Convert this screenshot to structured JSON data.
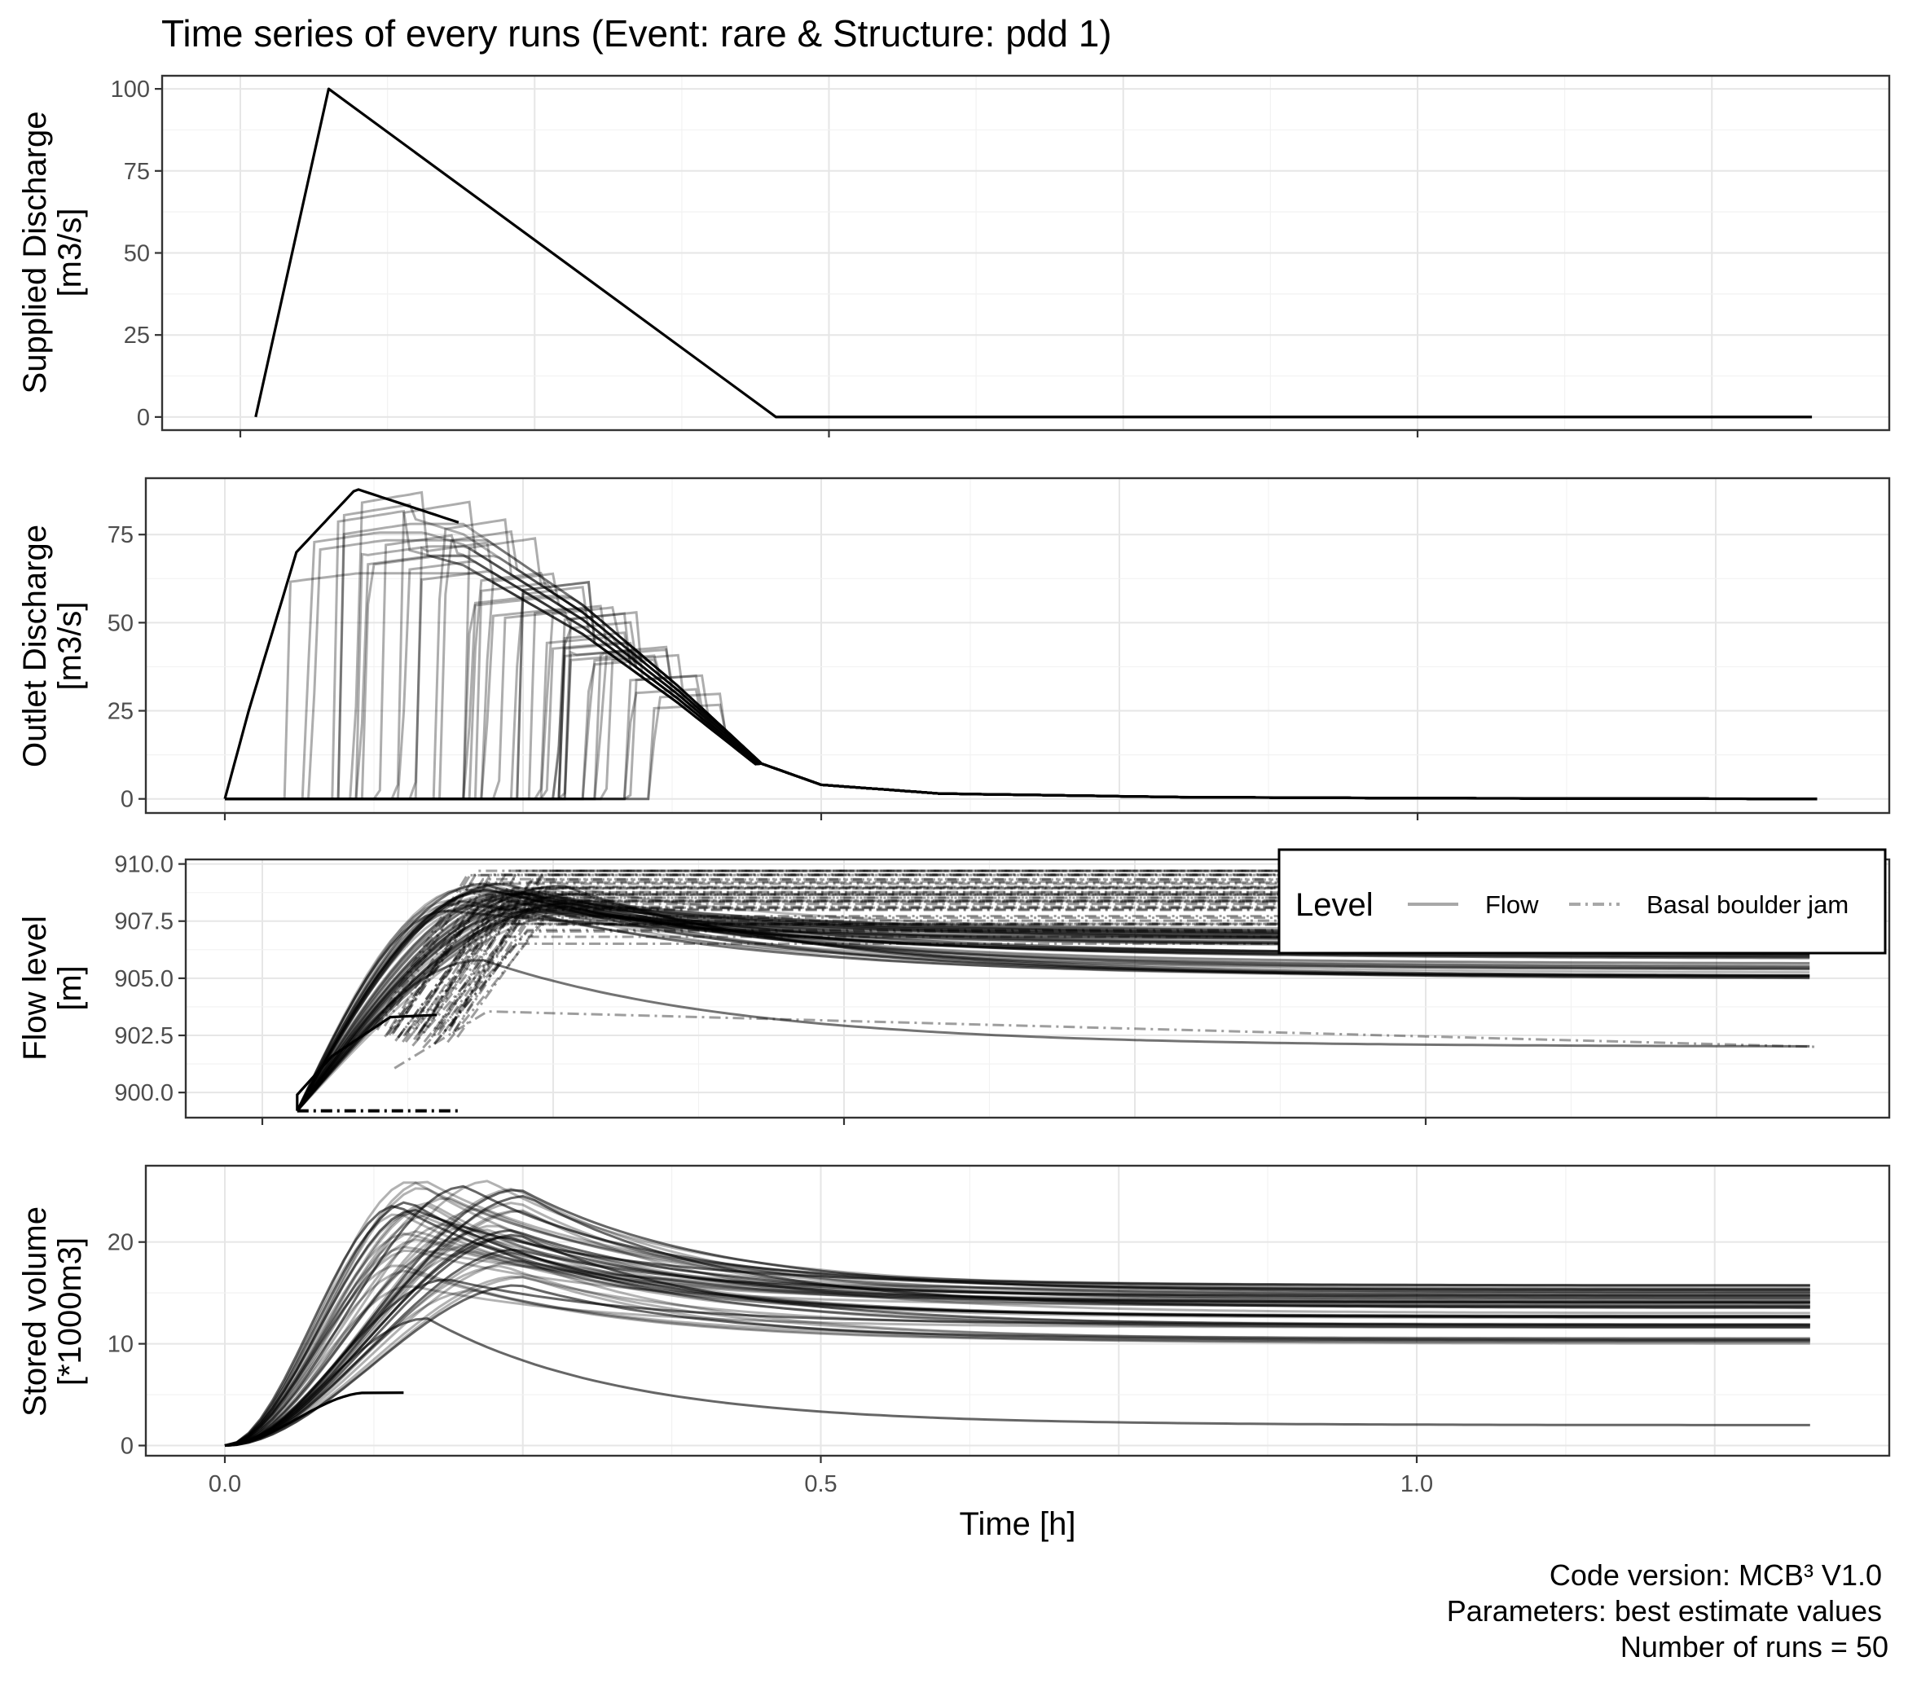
{
  "chart_data": {
    "type": "line",
    "title": "Time series of every runs (Event: rare & Structure: pdd 1)",
    "xlabel": "Time [h]",
    "x_ticks": [
      "0.0",
      "0.5",
      "1.0"
    ],
    "caption": [
      "Code version: MCB³ V1.0",
      "Parameters:  best estimate values",
      "Number of runs = 50"
    ],
    "n_runs": 50,
    "legend": {
      "title": "Level",
      "placement": "top-right",
      "entries": [
        {
          "label": "Flow",
          "linetype": "solid"
        },
        {
          "label": "Basal boulder jam",
          "linetype": "dashdot"
        }
      ]
    },
    "panels": [
      {
        "id": "supplied",
        "ylabel": [
          "Supplied Discharge",
          "[m3/s]"
        ],
        "ylim": [
          -4,
          104
        ],
        "y_ticks": [
          0,
          25,
          50,
          75,
          100
        ],
        "y_tick_labels": [
          "0",
          "25",
          "50",
          "75",
          "100"
        ],
        "series": [
          {
            "x": [
              0.013,
              0.075,
              0.455,
              1.335
            ],
            "y": [
              0,
              100,
              0,
              0
            ]
          }
        ]
      },
      {
        "id": "outlet",
        "ylabel": [
          "Outlet Discharge",
          "[m3/s]"
        ],
        "ylim": [
          -4,
          91
        ],
        "y_ticks": [
          0,
          25,
          50,
          75
        ],
        "y_tick_labels": [
          "0",
          "25",
          "50",
          "75"
        ],
        "envelope": {
          "x": [
            0.0,
            0.02,
            0.06,
            0.11,
            0.2,
            0.3,
            0.38,
            0.45,
            0.5,
            0.6,
            0.8,
            1.0,
            1.335
          ],
          "y": [
            0,
            25,
            70,
            88,
            78,
            55,
            32,
            10,
            4,
            1.5,
            0.5,
            0.2,
            0
          ]
        },
        "max_peak": 88
      },
      {
        "id": "flowlevel",
        "ylabel": [
          "Flow level",
          "[m]"
        ],
        "ylim": [
          898.9,
          910.2
        ],
        "y_ticks": [
          900.0,
          902.5,
          905.0,
          907.5,
          910.0
        ],
        "y_tick_labels": [
          "900.0",
          "902.5",
          "905.0",
          "907.5",
          "910.0"
        ],
        "final_levels": [
          902.0,
          905.1,
          905.5,
          906.0,
          906.5,
          906.8,
          907.0
        ]
      },
      {
        "id": "stored",
        "ylabel": [
          "Stored volume",
          "[*1000m3]"
        ],
        "ylim": [
          -1,
          27.5
        ],
        "y_ticks": [
          0,
          10,
          20
        ],
        "y_tick_labels": [
          "0",
          "10",
          "20"
        ],
        "max_value": 26,
        "final_values": [
          2,
          10.3,
          11.8,
          12.8,
          13.8,
          14.3,
          14.9,
          15.5
        ]
      }
    ]
  }
}
